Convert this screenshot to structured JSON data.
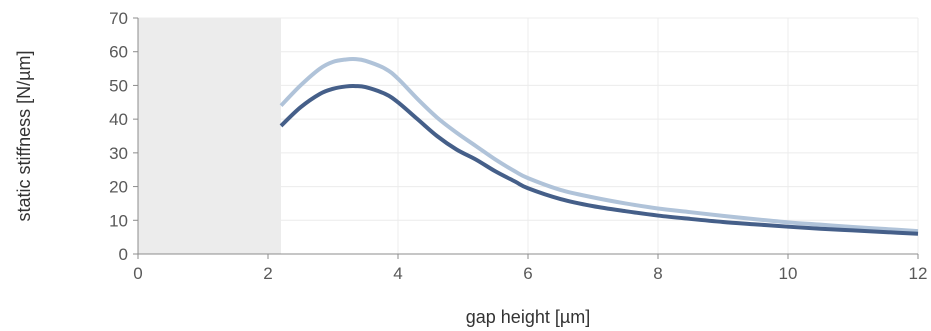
{
  "chart_data": {
    "type": "line",
    "xlabel": "gap height [µm]",
    "ylabel": "static stiffness [N/µm]",
    "xlim": [
      0,
      12
    ],
    "ylim": [
      0,
      70
    ],
    "x_ticks": [
      0,
      2,
      4,
      6,
      8,
      10,
      12
    ],
    "y_ticks": [
      0,
      10,
      20,
      30,
      40,
      50,
      60,
      70
    ],
    "grid": true,
    "shaded_region": {
      "x_start": 0,
      "x_end": 2.2,
      "color": "#ececec"
    },
    "series": [
      {
        "color": "#b0c3d9",
        "x": [
          2.2,
          2.5,
          2.8,
          3.0,
          3.2,
          3.35,
          3.5,
          3.8,
          4.0,
          4.3,
          4.6,
          4.9,
          5.2,
          5.5,
          5.8,
          6.0,
          6.5,
          7.0,
          7.5,
          8.0,
          8.5,
          9.0,
          9.5,
          10.0,
          10.5,
          11.0,
          11.5,
          12.0
        ],
        "y": [
          44,
          50,
          55,
          57,
          57.7,
          57.8,
          57.3,
          55,
          52,
          46,
          40.5,
          36,
          32,
          28,
          24.5,
          22.5,
          19,
          16.8,
          15,
          13.5,
          12.4,
          11.3,
          10.3,
          9.4,
          8.7,
          8.0,
          7.4,
          6.8
        ]
      },
      {
        "color": "#455f89",
        "x": [
          2.2,
          2.5,
          2.8,
          3.0,
          3.2,
          3.35,
          3.5,
          3.8,
          4.0,
          4.3,
          4.6,
          4.9,
          5.2,
          5.5,
          5.8,
          6.0,
          6.5,
          7.0,
          7.5,
          8.0,
          8.5,
          9.0,
          9.5,
          10.0,
          10.5,
          11.0,
          11.5,
          12.0
        ],
        "y": [
          38,
          43.5,
          47.5,
          49,
          49.7,
          49.8,
          49.5,
          47.5,
          45,
          40,
          35,
          31,
          28,
          24.5,
          21.5,
          19.5,
          16.3,
          14.2,
          12.7,
          11.4,
          10.4,
          9.5,
          8.8,
          8.1,
          7.5,
          7.0,
          6.5,
          6.0
        ]
      }
    ]
  }
}
